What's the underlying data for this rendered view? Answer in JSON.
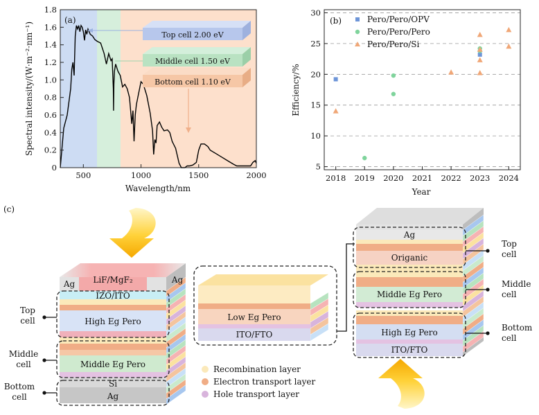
{
  "panel_a": {
    "tag": "(a)",
    "xlabel": "Wavelength/nm",
    "ylabel": "Spectral intensity/(W·m⁻²·nm⁻¹)",
    "x_ticks": [
      "500",
      "1000",
      "1500",
      "2000"
    ],
    "y_ticks": [
      "0",
      "0.2",
      "0.4",
      "0.6",
      "0.8",
      "1.0",
      "1.2",
      "1.4",
      "1.6",
      "1.8"
    ],
    "slabs": [
      {
        "label": "Top cell 2.00 eV",
        "color": "#b7c7ec"
      },
      {
        "label": "Middle cell 1.50 eV",
        "color": "#b9e2c2"
      },
      {
        "label": "Bottom cell 1.10 eV",
        "color": "#f6c7a6"
      }
    ],
    "band_colors": {
      "top": "#cddcf3",
      "middle": "#d6efdc",
      "bottom": "#fde0cc"
    }
  },
  "chart_data": [
    {
      "type": "line",
      "title": "",
      "xlabel": "Wavelength/nm",
      "ylabel": "Spectral intensity/(W·m⁻²·nm⁻¹)",
      "xlim": [
        300,
        2000
      ],
      "ylim": [
        0,
        1.8
      ],
      "series": [
        {
          "x": [
            300,
            330,
            360,
            390,
            400,
            410,
            420,
            430,
            440,
            450,
            460,
            470,
            480,
            490,
            500,
            510,
            520,
            530,
            540,
            560,
            580,
            600,
            620,
            650,
            680,
            700,
            720,
            740,
            750,
            760,
            762,
            765,
            770,
            780,
            800,
            820,
            840,
            860,
            880,
            900,
            920,
            930,
            940,
            950,
            960,
            980,
            1000,
            1020,
            1050,
            1080,
            1100,
            1110,
            1120,
            1130,
            1140,
            1160,
            1180,
            1200,
            1230,
            1250,
            1270,
            1300,
            1330,
            1350,
            1380,
            1400,
            1420,
            1450,
            1480,
            1500,
            1520,
            1550,
            1580,
            1600,
            1650,
            1700,
            1750,
            1800,
            1830,
            1860,
            1900,
            1950,
            1970,
            1990,
            2000
          ],
          "y": [
            0.0,
            0.45,
            0.6,
            0.9,
            1.12,
            1.2,
            1.05,
            1.5,
            1.62,
            1.58,
            1.62,
            1.55,
            1.62,
            1.6,
            1.55,
            1.45,
            1.57,
            1.52,
            1.58,
            1.52,
            1.5,
            1.46,
            1.44,
            1.42,
            1.3,
            1.18,
            1.3,
            1.22,
            1.24,
            0.9,
            0.65,
            0.95,
            1.1,
            1.18,
            1.1,
            1.05,
            0.92,
            0.95,
            0.9,
            0.8,
            0.5,
            0.65,
            0.3,
            0.6,
            0.72,
            0.85,
            0.98,
            0.95,
            0.82,
            0.62,
            0.42,
            0.15,
            0.32,
            0.28,
            0.48,
            0.52,
            0.46,
            0.42,
            0.43,
            0.4,
            0.3,
            0.22,
            0.05,
            0.0,
            0.0,
            0.02,
            0.02,
            0.03,
            0.06,
            0.2,
            0.27,
            0.27,
            0.24,
            0.2,
            0.16,
            0.12,
            0.08,
            0.04,
            0.02,
            0.02,
            0.02,
            0.02,
            0.06,
            0.08,
            0.05
          ]
        }
      ]
    },
    {
      "type": "scatter",
      "title": "",
      "xlabel": "Year",
      "ylabel": "Efficiency/%",
      "x_ticks": [
        "2018",
        "2019",
        "2020",
        "2021",
        "2022",
        "2023",
        "2024"
      ],
      "y_ticks": [
        "5",
        "10",
        "15",
        "20",
        "25",
        "30"
      ],
      "xlim": [
        2017.6,
        2024.4
      ],
      "ylim": [
        4.5,
        30.5
      ],
      "grid": true,
      "legend": "top-left",
      "series": [
        {
          "name": "Pero/Pero/OPV",
          "color": "#6d95d8",
          "marker": "square",
          "points": [
            [
              2018,
              19.2
            ],
            [
              2023,
              23.2
            ]
          ]
        },
        {
          "name": "Pero/Pero/Pero",
          "color": "#7fd49c",
          "marker": "circle",
          "points": [
            [
              2019,
              6.4
            ],
            [
              2020,
              19.8
            ],
            [
              2020,
              16.8
            ],
            [
              2023,
              24.2
            ],
            [
              2023,
              23.8
            ]
          ]
        },
        {
          "name": "Pero/Pero/Si",
          "color": "#f0a777",
          "marker": "triangle",
          "points": [
            [
              2018,
              14.0
            ],
            [
              2022,
              20.3
            ],
            [
              2023,
              20.2
            ],
            [
              2023,
              22.3
            ],
            [
              2023,
              24.0
            ],
            [
              2023,
              26.4
            ],
            [
              2024,
              27.2
            ],
            [
              2024,
              24.5
            ]
          ]
        }
      ]
    }
  ],
  "panel_b": {
    "tag": "(b)",
    "xlabel": "Year",
    "ylabel": "Efficiency/%",
    "legend": [
      "Pero/Pero/OPV",
      "Pero/Pero/Pero",
      "Pero/Pero/Si"
    ]
  },
  "panel_c": {
    "tag": "(c)",
    "left_stack": {
      "top_cap": {
        "left": "Ag",
        "center": "LiF/MgF₂",
        "right": "Ag"
      },
      "ito": "IZO/ITO",
      "high": "High Eg Pero",
      "middle": "Middle Eg Pero",
      "si": "Si",
      "ag": "Ag",
      "labels": {
        "top": [
          "Top",
          "cell"
        ],
        "middle": [
          "Middle",
          "cell"
        ],
        "bottom": [
          "Bottom",
          "cell"
        ]
      }
    },
    "center_stack": {
      "low": "Low Eg Pero",
      "ito": "ITO/FTO"
    },
    "legend": [
      {
        "label": "Recombination layer",
        "color": "#fbe9ba"
      },
      {
        "label": "Electron transport layer",
        "color": "#f0ad86"
      },
      {
        "label": "Hole transport layer",
        "color": "#d8b4dc"
      }
    ],
    "right_stack": {
      "ag": "Ag",
      "organic": "Origanic",
      "middle": "Middle Eg Pero",
      "high": "High Eg Pero",
      "ito": "ITO/FTO",
      "labels": {
        "top": [
          "Top",
          "cell"
        ],
        "middle": [
          "Middle",
          "cell"
        ],
        "bottom": [
          "Bottom",
          "cell"
        ]
      }
    }
  }
}
